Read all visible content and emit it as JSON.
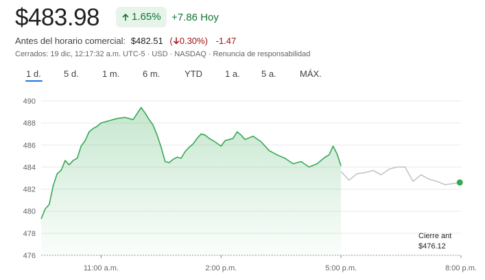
{
  "header": {
    "price": "$483.98",
    "change_pct": "1.65%",
    "change_abs": "+7.86",
    "period_label": "Hoy"
  },
  "premarket": {
    "label": "Antes del horario comercial:",
    "price": "$482.51",
    "pct": "0.30%",
    "abs": "-1.47"
  },
  "status": "Cerrados: 19 dic, 12:17:32 a.m. UTC-5 · USD · NASDAQ · Renuncia de responsabilidad",
  "tabs": [
    "1 d.",
    "5 d.",
    "1 m.",
    "6 m.",
    "YTD",
    "1 a.",
    "5 a.",
    "MÁX."
  ],
  "active_tab": 0,
  "colors": {
    "up": "#137333",
    "down": "#a50e0e",
    "line": "#34a853",
    "after_hours_line": "#bdc1c6",
    "accent": "#1a73e8"
  },
  "chart_data": {
    "type": "area",
    "x_unit": "hour_of_day",
    "xlim": [
      9.5,
      20
    ],
    "ylim": [
      476,
      491
    ],
    "yticks": [
      476,
      478,
      480,
      482,
      484,
      486,
      488,
      490
    ],
    "xticks": [
      {
        "x": 11,
        "label": "11:00 a.m."
      },
      {
        "x": 14,
        "label": "2:00 p.m."
      },
      {
        "x": 17,
        "label": "5:00 p.m."
      },
      {
        "x": 20,
        "label": "8:00 p.m."
      }
    ],
    "previous_close": {
      "label": "Cierre ant",
      "value_label": "$476.12",
      "value": 476.12
    },
    "grid": "horizontal",
    "series": [
      {
        "session": "regular",
        "x": [
          9.5,
          9.6,
          9.7,
          9.8,
          9.9,
          10.0,
          10.1,
          10.2,
          10.3,
          10.4,
          10.5,
          10.6,
          10.7,
          10.8,
          10.9,
          11.0,
          11.2,
          11.4,
          11.6,
          11.8,
          12.0,
          12.1,
          12.2,
          12.3,
          12.4,
          12.5,
          12.6,
          12.7,
          12.8,
          12.9,
          13.0,
          13.1,
          13.2,
          13.3,
          13.4,
          13.5,
          13.6,
          13.7,
          13.8,
          14.0,
          14.1,
          14.2,
          14.3,
          14.4,
          14.5,
          14.6,
          14.8,
          15.0,
          15.2,
          15.4,
          15.6,
          15.8,
          16.0,
          16.2,
          16.4,
          16.6,
          16.7,
          16.8,
          16.9,
          17.0
        ],
        "y": [
          479.3,
          480.2,
          480.6,
          482.3,
          483.4,
          483.7,
          484.6,
          484.2,
          484.6,
          484.8,
          485.9,
          486.4,
          487.2,
          487.5,
          487.7,
          488.0,
          488.2,
          488.4,
          488.5,
          488.3,
          489.4,
          488.9,
          488.3,
          487.8,
          486.9,
          485.8,
          484.5,
          484.4,
          484.7,
          484.9,
          484.8,
          485.4,
          485.8,
          486.1,
          486.6,
          487.0,
          486.9,
          486.6,
          486.4,
          485.9,
          486.4,
          486.5,
          486.6,
          487.2,
          486.9,
          486.5,
          486.8,
          486.3,
          485.5,
          485.1,
          484.8,
          484.3,
          484.5,
          484.0,
          484.3,
          484.9,
          485.1,
          485.9,
          485.2,
          484.1
        ]
      },
      {
        "session": "after_hours",
        "x": [
          17.0,
          17.2,
          17.4,
          17.6,
          17.8,
          18.0,
          18.2,
          18.4,
          18.6,
          18.8,
          19.0,
          19.2,
          19.4,
          19.6,
          19.8,
          19.97
        ],
        "y": [
          483.6,
          482.8,
          483.4,
          483.5,
          483.7,
          483.3,
          483.8,
          484.0,
          484.0,
          482.7,
          483.3,
          482.9,
          482.7,
          482.4,
          482.5,
          482.6
        ]
      }
    ]
  }
}
